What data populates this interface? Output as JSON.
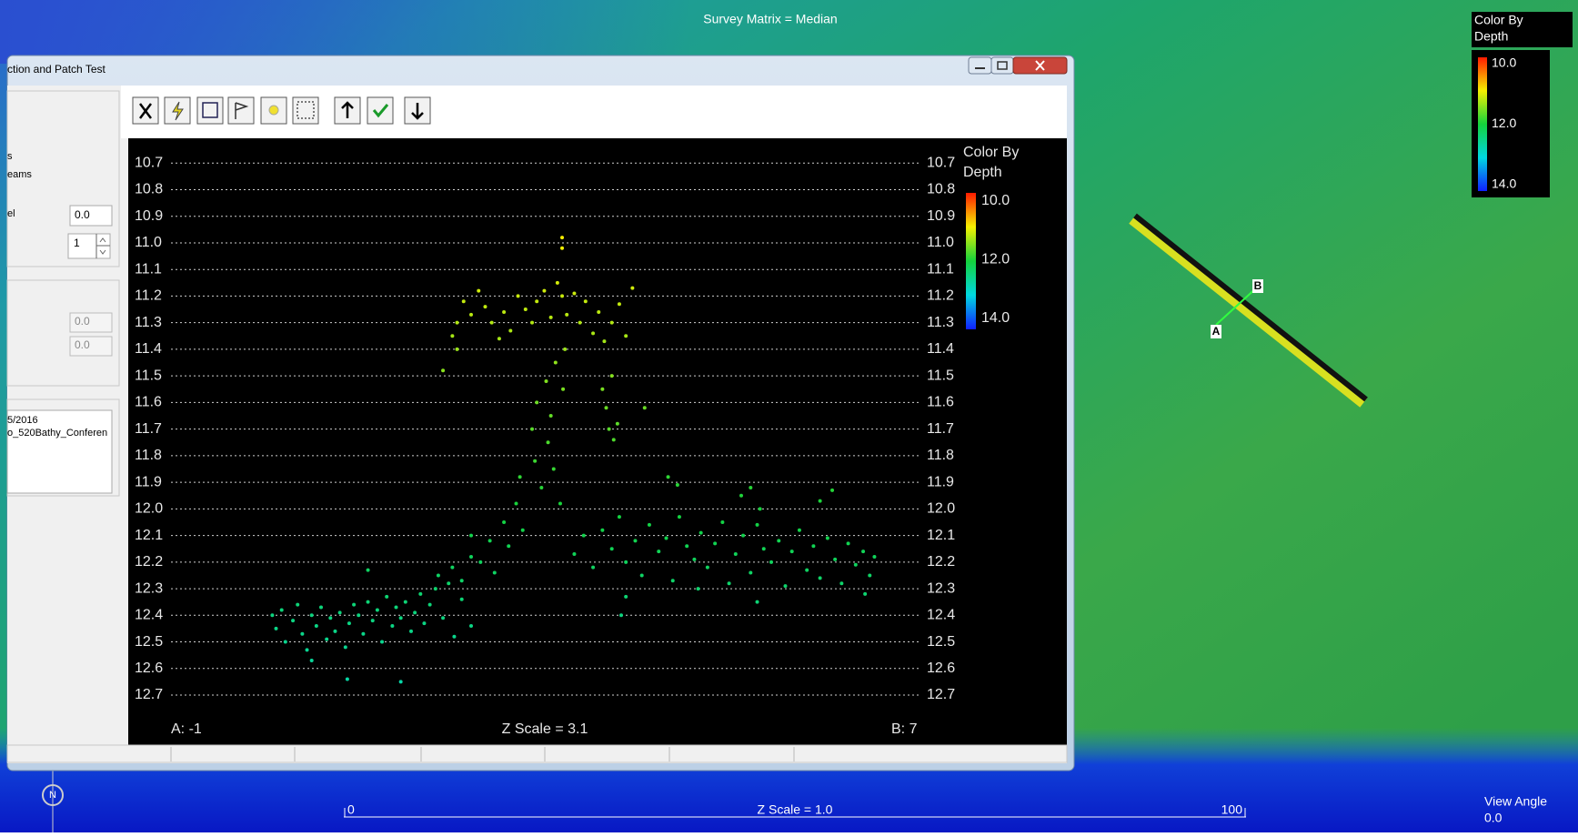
{
  "map": {
    "title": "Survey Matrix = Median",
    "legend_title": [
      "Color By",
      "Depth"
    ],
    "legend_ticks": [
      {
        "value": 10,
        "label": "10.0"
      },
      {
        "value": 12,
        "label": "12.0"
      },
      {
        "value": 14,
        "label": "14.0"
      }
    ],
    "marker_a": "A",
    "marker_b": "B",
    "scale_start": "0",
    "scale_end": "100",
    "z_scale": "Z Scale = 1.0",
    "view_angle_label": "View Angle",
    "view_angle": "0.0",
    "north": "N"
  },
  "window": {
    "title": "ction and Patch Test",
    "labels": [
      "s",
      "eams",
      "el"
    ],
    "fields": [
      "0.0",
      "1",
      "0.0",
      "0.0"
    ],
    "list": [
      "5/2016",
      "o_520Bathy_Conferen"
    ]
  },
  "chart_data": {
    "type": "scatter",
    "legend_title": [
      "Color By",
      "Depth"
    ],
    "colorbar": {
      "range": [
        10,
        14
      ],
      "colors": [
        "#ff1a00",
        "#f5f000",
        "#14d23c",
        "#00d8e0",
        "#1020ff"
      ],
      "ticks": [
        {
          "value": 10,
          "label": "10.0"
        },
        {
          "value": 12,
          "label": "12.0"
        },
        {
          "value": 14,
          "label": "14.0"
        }
      ]
    },
    "x_start_label": "A: -1",
    "x_end_label": "B: 7",
    "z_scale": "Z Scale = 3.1",
    "xlim": [
      -1,
      7
    ],
    "ylim": [
      10.6,
      12.9
    ],
    "y_reversed": true,
    "grid": true,
    "yticks": [
      10.7,
      10.8,
      10.9,
      {
        "value": 11,
        "label": "11.0"
      },
      11.1,
      11.2,
      11.3,
      11.4,
      11.5,
      11.6,
      11.7,
      11.8,
      11.9,
      {
        "value": 12,
        "label": "12.0"
      },
      12.1,
      12.2,
      12.3,
      12.4,
      12.5,
      12.6,
      12.7
    ],
    "points": [
      [
        0.08,
        12.4
      ],
      [
        0.12,
        12.45
      ],
      [
        0.18,
        12.38
      ],
      [
        0.22,
        12.5
      ],
      [
        0.3,
        12.42
      ],
      [
        0.35,
        12.36
      ],
      [
        0.4,
        12.47
      ],
      [
        0.45,
        12.53
      ],
      [
        0.5,
        12.4
      ],
      [
        0.55,
        12.44
      ],
      [
        0.6,
        12.37
      ],
      [
        0.66,
        12.49
      ],
      [
        0.7,
        12.41
      ],
      [
        0.75,
        12.46
      ],
      [
        0.8,
        12.39
      ],
      [
        0.86,
        12.52
      ],
      [
        0.9,
        12.43
      ],
      [
        0.95,
        12.36
      ],
      [
        1.0,
        12.4
      ],
      [
        1.05,
        12.47
      ],
      [
        1.1,
        12.35
      ],
      [
        1.15,
        12.42
      ],
      [
        1.2,
        12.38
      ],
      [
        1.25,
        12.5
      ],
      [
        1.3,
        12.33
      ],
      [
        1.36,
        12.44
      ],
      [
        1.4,
        12.37
      ],
      [
        1.45,
        12.41
      ],
      [
        1.5,
        12.35
      ],
      [
        1.56,
        12.46
      ],
      [
        1.6,
        12.39
      ],
      [
        1.66,
        12.32
      ],
      [
        1.7,
        12.43
      ],
      [
        1.76,
        12.36
      ],
      [
        1.82,
        12.3
      ],
      [
        1.9,
        12.41
      ],
      [
        1.96,
        12.28
      ],
      [
        2.02,
        12.48
      ],
      [
        2.1,
        12.34
      ],
      [
        2.2,
        12.44
      ],
      [
        0.88,
        12.64
      ],
      [
        1.45,
        12.65
      ],
      [
        0.5,
        12.57
      ],
      [
        1.1,
        12.23
      ],
      [
        1.85,
        12.25
      ],
      [
        2.0,
        12.22
      ],
      [
        2.1,
        12.27
      ],
      [
        2.2,
        12.18
      ],
      [
        2.3,
        12.2
      ],
      [
        2.4,
        12.12
      ],
      [
        2.45,
        12.24
      ],
      [
        2.55,
        12.05
      ],
      [
        2.6,
        12.14
      ],
      [
        2.68,
        11.98
      ],
      [
        2.72,
        11.88
      ],
      [
        2.75,
        12.08
      ],
      [
        2.2,
        12.1
      ],
      [
        2.85,
        11.7
      ],
      [
        2.88,
        11.82
      ],
      [
        2.9,
        11.6
      ],
      [
        2.95,
        11.92
      ],
      [
        3.0,
        11.52
      ],
      [
        3.02,
        11.75
      ],
      [
        3.05,
        11.65
      ],
      [
        3.08,
        11.85
      ],
      [
        3.1,
        11.45
      ],
      [
        3.15,
        11.98
      ],
      [
        3.18,
        11.55
      ],
      [
        3.2,
        11.4
      ],
      [
        2.0,
        11.35
      ],
      [
        2.05,
        11.3
      ],
      [
        2.12,
        11.22
      ],
      [
        2.2,
        11.27
      ],
      [
        2.28,
        11.18
      ],
      [
        2.35,
        11.24
      ],
      [
        2.42,
        11.3
      ],
      [
        2.5,
        11.36
      ],
      [
        2.55,
        11.26
      ],
      [
        2.62,
        11.33
      ],
      [
        2.7,
        11.2
      ],
      [
        2.78,
        11.25
      ],
      [
        2.85,
        11.3
      ],
      [
        2.9,
        11.22
      ],
      [
        2.98,
        11.18
      ],
      [
        3.05,
        11.28
      ],
      [
        3.12,
        11.15
      ],
      [
        3.17,
        11.2
      ],
      [
        3.22,
        11.27
      ],
      [
        3.3,
        11.19
      ],
      [
        3.36,
        11.3
      ],
      [
        3.42,
        11.22
      ],
      [
        3.5,
        11.34
      ],
      [
        3.56,
        11.26
      ],
      [
        3.62,
        11.37
      ],
      [
        3.7,
        11.3
      ],
      [
        3.78,
        11.23
      ],
      [
        3.85,
        11.35
      ],
      [
        3.92,
        11.17
      ],
      [
        3.17,
        10.98
      ],
      [
        3.17,
        11.02
      ],
      [
        1.9,
        11.48
      ],
      [
        2.05,
        11.4
      ],
      [
        3.6,
        11.55
      ],
      [
        3.64,
        11.62
      ],
      [
        3.67,
        11.7
      ],
      [
        3.72,
        11.74
      ],
      [
        3.76,
        11.68
      ],
      [
        3.7,
        11.5
      ],
      [
        4.05,
        11.62
      ],
      [
        3.3,
        12.17
      ],
      [
        3.4,
        12.1
      ],
      [
        3.5,
        12.22
      ],
      [
        3.6,
        12.08
      ],
      [
        3.7,
        12.15
      ],
      [
        3.78,
        12.03
      ],
      [
        3.85,
        12.2
      ],
      [
        3.95,
        12.12
      ],
      [
        4.02,
        12.25
      ],
      [
        4.1,
        12.06
      ],
      [
        4.2,
        12.16
      ],
      [
        4.28,
        12.11
      ],
      [
        4.35,
        12.27
      ],
      [
        4.42,
        12.03
      ],
      [
        4.5,
        12.14
      ],
      [
        4.58,
        12.19
      ],
      [
        4.65,
        12.09
      ],
      [
        4.72,
        12.22
      ],
      [
        4.8,
        12.13
      ],
      [
        4.88,
        12.05
      ],
      [
        4.95,
        12.28
      ],
      [
        5.02,
        12.17
      ],
      [
        5.1,
        12.1
      ],
      [
        5.18,
        12.24
      ],
      [
        5.25,
        12.06
      ],
      [
        5.32,
        12.15
      ],
      [
        5.4,
        12.2
      ],
      [
        5.48,
        12.12
      ],
      [
        5.55,
        12.29
      ],
      [
        5.62,
        12.16
      ],
      [
        5.7,
        12.08
      ],
      [
        5.78,
        12.23
      ],
      [
        5.85,
        12.14
      ],
      [
        5.92,
        12.26
      ],
      [
        6.0,
        12.11
      ],
      [
        6.08,
        12.19
      ],
      [
        6.15,
        12.28
      ],
      [
        6.22,
        12.13
      ],
      [
        6.3,
        12.21
      ],
      [
        6.38,
        12.16
      ],
      [
        6.45,
        12.25
      ],
      [
        6.5,
        12.18
      ],
      [
        4.3,
        11.88
      ],
      [
        4.4,
        11.91
      ],
      [
        5.08,
        11.95
      ],
      [
        5.18,
        11.92
      ],
      [
        5.28,
        12.0
      ],
      [
        5.92,
        11.97
      ],
      [
        6.05,
        11.93
      ],
      [
        4.62,
        12.3
      ],
      [
        5.25,
        12.35
      ],
      [
        3.8,
        12.4
      ],
      [
        3.85,
        12.33
      ],
      [
        6.4,
        12.32
      ]
    ]
  }
}
